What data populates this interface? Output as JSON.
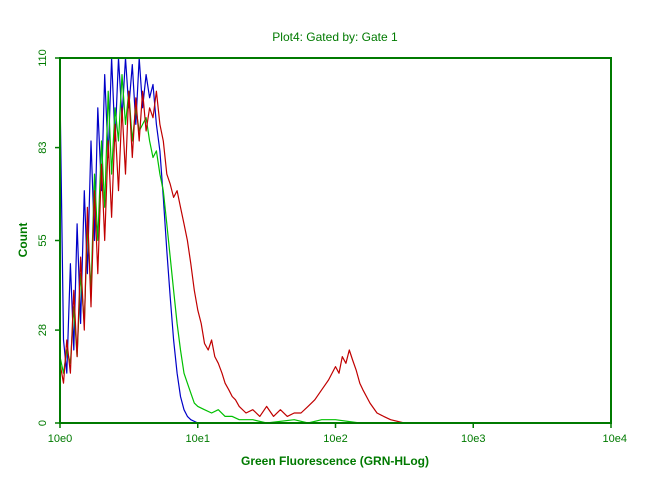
{
  "chart_data": {
    "type": "line",
    "title": "Plot4:  Gated by: Gate 1",
    "xlabel": "Green Fluorescence (GRN-HLog)",
    "ylabel": "Count",
    "x_scale": "log",
    "xlim": [
      1,
      10000
    ],
    "ylim": [
      0,
      110
    ],
    "x_ticks": [
      {
        "value": 1,
        "label": "10e0"
      },
      {
        "value": 10,
        "label": "10e1"
      },
      {
        "value": 100,
        "label": "10e2"
      },
      {
        "value": 1000,
        "label": "10e3"
      },
      {
        "value": 10000,
        "label": "10e4"
      }
    ],
    "y_ticks": [
      {
        "value": 0,
        "label": "0"
      },
      {
        "value": 28,
        "label": "28"
      },
      {
        "value": 55,
        "label": "55"
      },
      {
        "value": 83,
        "label": "83"
      },
      {
        "value": 110,
        "label": "110"
      }
    ],
    "grid": false,
    "legend": "none",
    "axis_color": "#007a00",
    "series": [
      {
        "color": "#0000c8",
        "points": [
          [
            1.0,
            100
          ],
          [
            1.06,
            25
          ],
          [
            1.12,
            15
          ],
          [
            1.19,
            48
          ],
          [
            1.26,
            22
          ],
          [
            1.33,
            60
          ],
          [
            1.41,
            30
          ],
          [
            1.5,
            70
          ],
          [
            1.58,
            45
          ],
          [
            1.68,
            85
          ],
          [
            1.78,
            55
          ],
          [
            1.88,
            95
          ],
          [
            2.0,
            70
          ],
          [
            2.11,
            105
          ],
          [
            2.24,
            80
          ],
          [
            2.37,
            110
          ],
          [
            2.51,
            85
          ],
          [
            2.66,
            110
          ],
          [
            2.82,
            92
          ],
          [
            2.99,
            110
          ],
          [
            3.16,
            95
          ],
          [
            3.35,
            108
          ],
          [
            3.55,
            90
          ],
          [
            3.76,
            110
          ],
          [
            3.98,
            95
          ],
          [
            4.22,
            105
          ],
          [
            4.47,
            98
          ],
          [
            4.73,
            102
          ],
          [
            5.01,
            90
          ],
          [
            5.31,
            82
          ],
          [
            5.62,
            68
          ],
          [
            5.96,
            52
          ],
          [
            6.31,
            38
          ],
          [
            6.68,
            25
          ],
          [
            7.08,
            15
          ],
          [
            7.5,
            8
          ],
          [
            7.94,
            4
          ],
          [
            8.41,
            2
          ],
          [
            8.91,
            1
          ],
          [
            10.0,
            0
          ],
          [
            10000,
            0
          ]
        ]
      },
      {
        "color": "#00c000",
        "points": [
          [
            1.0,
            20
          ],
          [
            1.06,
            15
          ],
          [
            1.12,
            22
          ],
          [
            1.19,
            18
          ],
          [
            1.26,
            35
          ],
          [
            1.33,
            20
          ],
          [
            1.41,
            45
          ],
          [
            1.5,
            30
          ],
          [
            1.58,
            60
          ],
          [
            1.68,
            40
          ],
          [
            1.78,
            75
          ],
          [
            1.88,
            55
          ],
          [
            2.0,
            85
          ],
          [
            2.11,
            65
          ],
          [
            2.24,
            100
          ],
          [
            2.37,
            75
          ],
          [
            2.51,
            95
          ],
          [
            2.66,
            85
          ],
          [
            2.82,
            105
          ],
          [
            2.99,
            90
          ],
          [
            3.16,
            100
          ],
          [
            3.35,
            85
          ],
          [
            3.55,
            95
          ],
          [
            3.76,
            88
          ],
          [
            3.98,
            90
          ],
          [
            4.22,
            92
          ],
          [
            4.47,
            85
          ],
          [
            4.73,
            80
          ],
          [
            5.01,
            82
          ],
          [
            5.31,
            75
          ],
          [
            5.62,
            70
          ],
          [
            5.96,
            60
          ],
          [
            6.31,
            50
          ],
          [
            6.68,
            40
          ],
          [
            7.08,
            30
          ],
          [
            7.5,
            22
          ],
          [
            7.94,
            15
          ],
          [
            8.41,
            12
          ],
          [
            8.91,
            9
          ],
          [
            9.44,
            6
          ],
          [
            10.0,
            5
          ],
          [
            11.2,
            4
          ],
          [
            12.6,
            3
          ],
          [
            14.1,
            4
          ],
          [
            15.8,
            2
          ],
          [
            17.8,
            2
          ],
          [
            20.0,
            1
          ],
          [
            25.1,
            1
          ],
          [
            31.6,
            0
          ],
          [
            50.1,
            1
          ],
          [
            63.1,
            0
          ],
          [
            79.4,
            1
          ],
          [
            100,
            1
          ],
          [
            150,
            0
          ],
          [
            300,
            0
          ],
          [
            1000,
            0
          ],
          [
            10000,
            0
          ]
        ]
      },
      {
        "color": "#c00000",
        "points": [
          [
            1.0,
            18
          ],
          [
            1.06,
            12
          ],
          [
            1.12,
            25
          ],
          [
            1.19,
            15
          ],
          [
            1.26,
            40
          ],
          [
            1.33,
            20
          ],
          [
            1.41,
            50
          ],
          [
            1.5,
            28
          ],
          [
            1.58,
            65
          ],
          [
            1.68,
            35
          ],
          [
            1.78,
            70
          ],
          [
            1.88,
            45
          ],
          [
            2.0,
            78
          ],
          [
            2.11,
            55
          ],
          [
            2.24,
            85
          ],
          [
            2.37,
            62
          ],
          [
            2.51,
            90
          ],
          [
            2.66,
            70
          ],
          [
            2.82,
            95
          ],
          [
            2.99,
            75
          ],
          [
            3.16,
            100
          ],
          [
            3.35,
            80
          ],
          [
            3.55,
            98
          ],
          [
            3.76,
            85
          ],
          [
            3.98,
            100
          ],
          [
            4.22,
            88
          ],
          [
            4.47,
            95
          ],
          [
            4.73,
            92
          ],
          [
            5.01,
            100
          ],
          [
            5.31,
            90
          ],
          [
            5.62,
            85
          ],
          [
            5.96,
            75
          ],
          [
            6.31,
            72
          ],
          [
            6.68,
            68
          ],
          [
            7.08,
            70
          ],
          [
            7.5,
            65
          ],
          [
            7.94,
            60
          ],
          [
            8.41,
            55
          ],
          [
            8.91,
            48
          ],
          [
            9.44,
            40
          ],
          [
            10.0,
            34
          ],
          [
            10.6,
            30
          ],
          [
            11.2,
            24
          ],
          [
            11.9,
            22
          ],
          [
            12.6,
            25
          ],
          [
            13.3,
            20
          ],
          [
            14.1,
            18
          ],
          [
            15.0,
            15
          ],
          [
            15.8,
            12
          ],
          [
            16.8,
            10
          ],
          [
            17.8,
            8
          ],
          [
            18.8,
            7
          ],
          [
            20.0,
            5
          ],
          [
            22.4,
            3
          ],
          [
            25.1,
            4
          ],
          [
            28.2,
            2
          ],
          [
            31.6,
            5
          ],
          [
            35.5,
            2
          ],
          [
            39.8,
            4
          ],
          [
            44.7,
            2
          ],
          [
            50.1,
            3
          ],
          [
            56.2,
            3
          ],
          [
            63.1,
            5
          ],
          [
            70.8,
            7
          ],
          [
            79.4,
            10
          ],
          [
            89.1,
            13
          ],
          [
            100,
            17
          ],
          [
            106,
            15
          ],
          [
            112,
            20
          ],
          [
            119,
            18
          ],
          [
            126,
            22
          ],
          [
            133,
            19
          ],
          [
            141,
            16
          ],
          [
            150,
            12
          ],
          [
            158,
            10
          ],
          [
            178,
            6
          ],
          [
            200,
            3
          ],
          [
            224,
            2
          ],
          [
            251,
            1
          ],
          [
            316,
            0
          ],
          [
            10000,
            0
          ]
        ]
      }
    ]
  }
}
